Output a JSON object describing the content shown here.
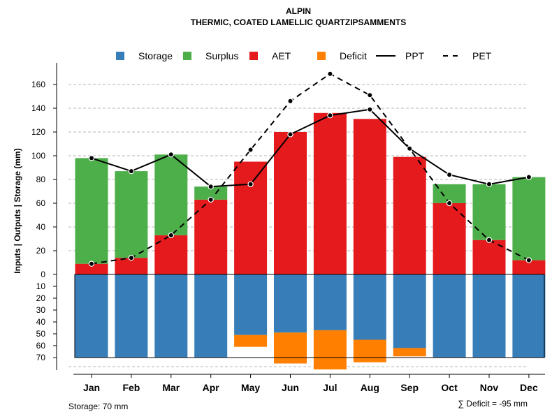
{
  "chart_data": {
    "type": "bar",
    "title": "ALPIN",
    "subtitle": "THERMIC, COATED LAMELLIC QUARTZIPSAMMENTS",
    "ylabel": "Inputs | Outputs | Storage    (mm)",
    "categories": [
      "Jan",
      "Feb",
      "Mar",
      "Apr",
      "May",
      "Jun",
      "Jul",
      "Aug",
      "Sep",
      "Oct",
      "Nov",
      "Dec"
    ],
    "upper_ylim": [
      0,
      170
    ],
    "upper_ticks": [
      "0",
      "20",
      "40",
      "60",
      "80",
      "100",
      "120",
      "140",
      "160"
    ],
    "lower_ticks": [
      "10",
      "20",
      "30",
      "40",
      "50",
      "60",
      "70"
    ],
    "series": [
      {
        "name": "AET",
        "color": "#E41A1C",
        "values": [
          9,
          14,
          33,
          63,
          95,
          120,
          136,
          131,
          99,
          60,
          29,
          12
        ]
      },
      {
        "name": "Surplus",
        "color": "#4DAF4A",
        "values": [
          89,
          73,
          68,
          11,
          0,
          0,
          0,
          0,
          0,
          16,
          47,
          70
        ]
      },
      {
        "name": "Storage",
        "color": "#377EB8",
        "values": [
          70,
          70,
          70,
          70,
          51,
          49,
          47,
          55,
          62,
          70,
          70,
          70
        ]
      },
      {
        "name": "Deficit",
        "color": "#FF7F00",
        "values": [
          0,
          0,
          0,
          0,
          10,
          26,
          33,
          19,
          7,
          0,
          0,
          0
        ]
      },
      {
        "name": "PPT",
        "color": "#000000",
        "line": "solid",
        "values": [
          98,
          87,
          101,
          74,
          76,
          118,
          134,
          139,
          106,
          84,
          76,
          82
        ]
      },
      {
        "name": "PET",
        "color": "#000000",
        "line": "dashed",
        "values": [
          9,
          14,
          33,
          63,
          105,
          146,
          169,
          151,
          106,
          60,
          29,
          12
        ]
      }
    ],
    "legend": [
      {
        "label": "Storage",
        "kind": "box",
        "color": "#377EB8"
      },
      {
        "label": "Surplus",
        "kind": "box",
        "color": "#4DAF4A"
      },
      {
        "label": "AET",
        "kind": "box",
        "color": "#E41A1C"
      },
      {
        "label": "Deficit",
        "kind": "box",
        "color": "#FF7F00"
      },
      {
        "label": "PPT",
        "kind": "solid",
        "color": "#000000"
      },
      {
        "label": "PET",
        "kind": "dashed",
        "color": "#000000"
      }
    ],
    "legend_position": "top",
    "grid": "horizontal dashed",
    "storage_note": "Storage: 70 mm",
    "deficit_note": "∑ Deficit = -95 mm"
  }
}
